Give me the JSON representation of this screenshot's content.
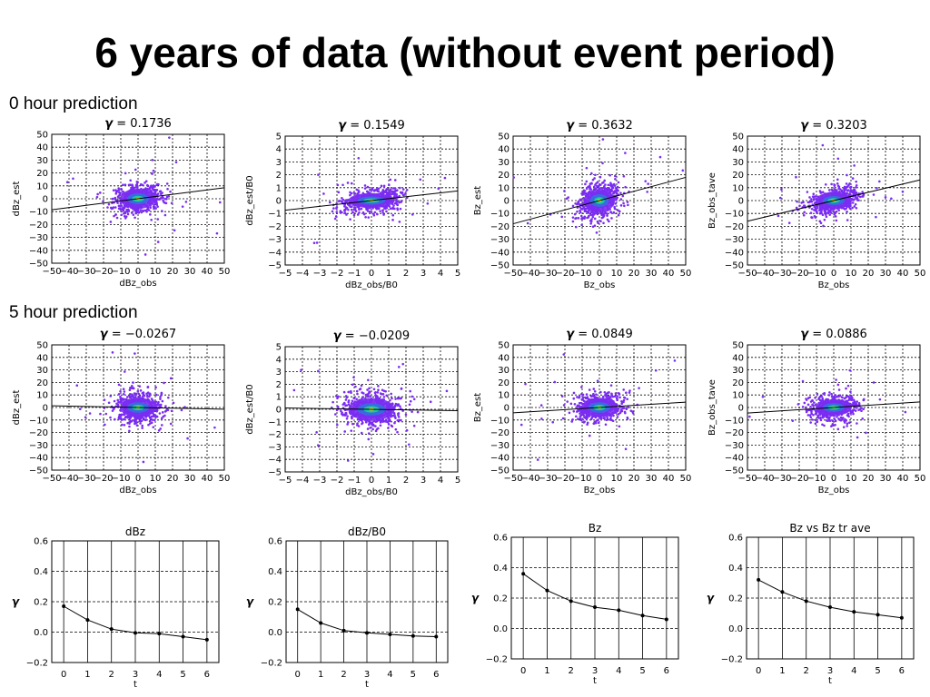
{
  "title": "6 years of data (without event period)",
  "sections": {
    "zero_hour": "0 hour prediction",
    "five_hour": "5 hour prediction"
  },
  "colors": {
    "scatter_outer": "#7a2cf2",
    "scatter_mid": "#3a6ae0",
    "scatter_core": "#1fc8a0",
    "scatter_center": "#f2e21a",
    "line": "#000000",
    "grid": "#000000"
  },
  "chart_data": [
    {
      "type": "scatter",
      "row": "0 hour prediction",
      "gamma_label": "γ =",
      "gamma_value": "0.1736",
      "xlabel": "dBz_obs",
      "ylabel": "dBz_est",
      "xticks": [
        "−50",
        "−40",
        "−30",
        "−20",
        "−10",
        "0",
        "10",
        "20",
        "30",
        "40",
        "50"
      ],
      "yticks": [
        "50",
        "40",
        "30",
        "20",
        "10",
        "0",
        "−10",
        "−20",
        "−30",
        "−40",
        "−50"
      ],
      "xlim": [
        -50,
        50
      ],
      "ylim": [
        -50,
        50
      ],
      "fit_slope": 0.17,
      "spread": [
        7,
        6
      ],
      "grid": true
    },
    {
      "type": "scatter",
      "row": "0 hour prediction",
      "gamma_label": "γ =",
      "gamma_value": "0.1549",
      "xlabel": "dBz_obs/B0",
      "ylabel": "dBz_est/B0",
      "xticks": [
        "−5",
        "−4",
        "−3",
        "−2",
        "−1",
        "0",
        "1",
        "2",
        "3",
        "4",
        "5"
      ],
      "yticks": [
        "5",
        "4",
        "3",
        "2",
        "1",
        "0",
        "−1",
        "−2",
        "−3",
        "−4",
        "−5"
      ],
      "xlim": [
        -5,
        5
      ],
      "ylim": [
        -5,
        5
      ],
      "fit_slope": 0.15,
      "spread": [
        0.9,
        0.45
      ],
      "grid": true
    },
    {
      "type": "scatter",
      "row": "0 hour prediction",
      "gamma_label": "γ =",
      "gamma_value": "0.3632",
      "xlabel": "Bz_obs",
      "ylabel": "Bz_est",
      "xticks": [
        "−50",
        "−40",
        "−30",
        "−20",
        "−10",
        "0",
        "10",
        "20",
        "30",
        "40",
        "50"
      ],
      "yticks": [
        "50",
        "40",
        "30",
        "20",
        "10",
        "0",
        "−10",
        "−20",
        "−30",
        "−40",
        "−50"
      ],
      "xlim": [
        -50,
        50
      ],
      "ylim": [
        -50,
        50
      ],
      "fit_slope": 0.36,
      "spread": [
        6,
        7
      ],
      "grid": true
    },
    {
      "type": "scatter",
      "row": "0 hour prediction",
      "gamma_label": "γ =",
      "gamma_value": "0.3203",
      "xlabel": "Bz_obs",
      "ylabel": "Bz_obs_tave",
      "xticks": [
        "−50",
        "−40",
        "−30",
        "−20",
        "−10",
        "0",
        "10",
        "20",
        "30",
        "40",
        "50"
      ],
      "yticks": [
        "50",
        "40",
        "30",
        "20",
        "10",
        "0",
        "−10",
        "−20",
        "−30",
        "−40",
        "−50"
      ],
      "xlim": [
        -50,
        50
      ],
      "ylim": [
        -50,
        50
      ],
      "fit_slope": 0.32,
      "spread": [
        7,
        5
      ],
      "grid": true
    },
    {
      "type": "scatter",
      "row": "5 hour prediction",
      "gamma_label": "γ =",
      "gamma_value": "−0.0267",
      "xlabel": "dBz_obs",
      "ylabel": "dBz_est",
      "xticks": [
        "−50",
        "−40",
        "−30",
        "−20",
        "−10",
        "0",
        "10",
        "20",
        "30",
        "40",
        "50"
      ],
      "yticks": [
        "50",
        "40",
        "30",
        "20",
        "10",
        "0",
        "−10",
        "−20",
        "−30",
        "−40",
        "−50"
      ],
      "xlim": [
        -50,
        50
      ],
      "ylim": [
        -50,
        50
      ],
      "fit_slope": -0.027,
      "spread": [
        7,
        6
      ],
      "grid": true
    },
    {
      "type": "scatter",
      "row": "5 hour prediction",
      "gamma_label": "γ =",
      "gamma_value": "−0.0209",
      "xlabel": "dBz_obs/B0",
      "ylabel": "dBz_est/B0",
      "xticks": [
        "−5",
        "−4",
        "−3",
        "−2",
        "−1",
        "0",
        "1",
        "2",
        "3",
        "4",
        "5"
      ],
      "yticks": [
        "5",
        "4",
        "3",
        "2",
        "1",
        "0",
        "−1",
        "−2",
        "−3",
        "−4",
        "−5"
      ],
      "xlim": [
        -5,
        5
      ],
      "ylim": [
        -5,
        5
      ],
      "fit_slope": -0.021,
      "spread": [
        0.9,
        0.7
      ],
      "grid": true
    },
    {
      "type": "scatter",
      "row": "5 hour prediction",
      "gamma_label": "γ =",
      "gamma_value": "0.0849",
      "xlabel": "Bz_obs",
      "ylabel": "Bz_est",
      "xticks": [
        "−50",
        "−40",
        "−30",
        "−20",
        "−10",
        "0",
        "10",
        "20",
        "30",
        "40",
        "50"
      ],
      "yticks": [
        "50",
        "40",
        "30",
        "20",
        "10",
        "0",
        "−10",
        "−20",
        "−30",
        "−40",
        "−50"
      ],
      "xlim": [
        -50,
        50
      ],
      "ylim": [
        -50,
        50
      ],
      "fit_slope": 0.085,
      "spread": [
        7,
        6
      ],
      "grid": true
    },
    {
      "type": "scatter",
      "row": "5 hour prediction",
      "gamma_label": "γ =",
      "gamma_value": "0.0886",
      "xlabel": "Bz_obs",
      "ylabel": "Bz_obs_tave",
      "xticks": [
        "−50",
        "−40",
        "−30",
        "−20",
        "−10",
        "0",
        "10",
        "20",
        "30",
        "40",
        "50"
      ],
      "yticks": [
        "50",
        "40",
        "30",
        "20",
        "10",
        "0",
        "−10",
        "−20",
        "−30",
        "−40",
        "−50"
      ],
      "xlim": [
        -50,
        50
      ],
      "ylim": [
        -50,
        50
      ],
      "fit_slope": 0.089,
      "spread": [
        7,
        5
      ],
      "grid": true
    },
    {
      "type": "line",
      "title": "dBz",
      "xlabel": "t",
      "ylabel": "γ",
      "x": [
        0,
        1,
        2,
        3,
        4,
        5,
        6
      ],
      "y": [
        0.17,
        0.08,
        0.02,
        -0.005,
        -0.01,
        -0.03,
        -0.05
      ],
      "xticks": [
        "0",
        "1",
        "2",
        "3",
        "4",
        "5",
        "6"
      ],
      "yticks": [
        "0.6",
        "0.4",
        "0.2",
        "0.0",
        "−0.2"
      ],
      "xlim": [
        -0.5,
        6.5
      ],
      "ylim": [
        -0.2,
        0.6
      ],
      "grid": true
    },
    {
      "type": "line",
      "title": "dBz/B0",
      "xlabel": "t",
      "ylabel": "γ",
      "x": [
        0,
        1,
        2,
        3,
        4,
        5,
        6
      ],
      "y": [
        0.15,
        0.06,
        0.01,
        -0.005,
        -0.015,
        -0.025,
        -0.03
      ],
      "xticks": [
        "0",
        "1",
        "2",
        "3",
        "4",
        "5",
        "6"
      ],
      "yticks": [
        "0.6",
        "0.4",
        "0.2",
        "0.0",
        "−0.2"
      ],
      "xlim": [
        -0.5,
        6.5
      ],
      "ylim": [
        -0.2,
        0.6
      ],
      "grid": true
    },
    {
      "type": "line",
      "title": "Bz",
      "xlabel": "t",
      "ylabel": "γ",
      "x": [
        0,
        1,
        2,
        3,
        4,
        5,
        6
      ],
      "y": [
        0.36,
        0.25,
        0.18,
        0.14,
        0.12,
        0.085,
        0.06
      ],
      "xticks": [
        "0",
        "1",
        "2",
        "3",
        "4",
        "5",
        "6"
      ],
      "yticks": [
        "0.6",
        "0.4",
        "0.2",
        "0.0",
        "−0.2"
      ],
      "xlim": [
        -0.5,
        6.5
      ],
      "ylim": [
        -0.2,
        0.6
      ],
      "grid": true
    },
    {
      "type": "line",
      "title": "Bz vs Bz tr ave",
      "xlabel": "t",
      "ylabel": "γ",
      "x": [
        0,
        1,
        2,
        3,
        4,
        5,
        6
      ],
      "y": [
        0.32,
        0.24,
        0.18,
        0.14,
        0.11,
        0.09,
        0.07
      ],
      "xticks": [
        "0",
        "1",
        "2",
        "3",
        "4",
        "5",
        "6"
      ],
      "yticks": [
        "0.6",
        "0.4",
        "0.2",
        "0.0",
        "−0.2"
      ],
      "xlim": [
        -0.5,
        6.5
      ],
      "ylim": [
        -0.2,
        0.6
      ],
      "grid": true
    }
  ]
}
